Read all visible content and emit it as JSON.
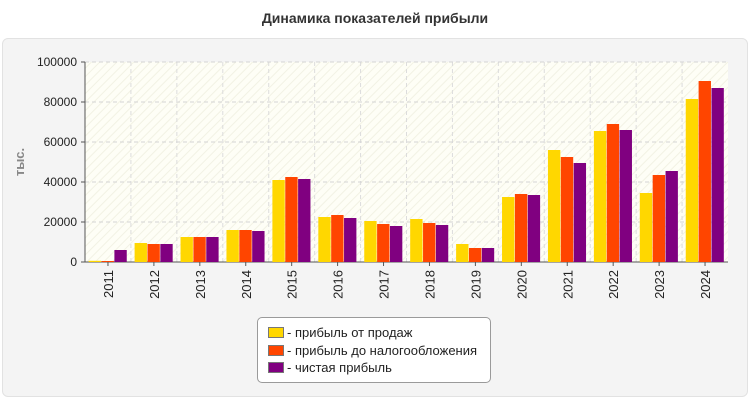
{
  "chart_data": {
    "type": "bar",
    "title": "Динамика показателей прибыли",
    "ylabel": "тыс.",
    "xlabel": "",
    "ylim": [
      0,
      100000
    ],
    "yticks": [
      "0",
      "20000",
      "40000",
      "60000",
      "80000",
      "100000"
    ],
    "grid": true,
    "legend_position": "bottom",
    "categories": [
      "2011",
      "2012",
      "2013",
      "2014",
      "2015",
      "2016",
      "2017",
      "2018",
      "2019",
      "2020",
      "2021",
      "2022",
      "2023",
      "2024"
    ],
    "series": [
      {
        "name": "- прибыль от продаж",
        "color": "#ffd700",
        "values": [
          600,
          9500,
          12500,
          16000,
          41000,
          22500,
          20500,
          21500,
          9000,
          32500,
          56000,
          65500,
          34500,
          81500
        ]
      },
      {
        "name": "- прибыль до налогообложения",
        "color": "#ff4500",
        "values": [
          500,
          9000,
          12500,
          16000,
          42500,
          23500,
          19000,
          19500,
          7000,
          34000,
          52500,
          69000,
          43500,
          90500
        ]
      },
      {
        "name": "- чистая прибыль",
        "color": "#800080",
        "values": [
          6000,
          9000,
          12500,
          15500,
          41500,
          22000,
          18000,
          18500,
          7000,
          33500,
          49500,
          66000,
          45500,
          87000
        ]
      }
    ]
  }
}
